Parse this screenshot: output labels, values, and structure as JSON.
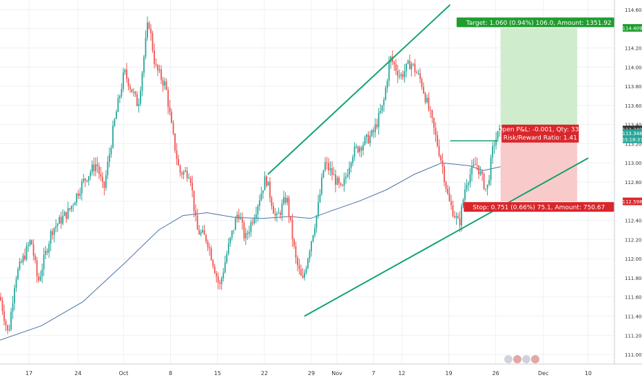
{
  "colors": {
    "up": "#26a69a",
    "down": "#ef5350",
    "trendline": "#0fa36b",
    "ma": "#4a6fa5",
    "target_zone": "#cfeccd",
    "stop_zone": "#f9caca",
    "target_label_bg": "#1f9e2e",
    "stop_label_bg": "#d9262b",
    "grid": "#eef0f3",
    "axis_text": "#333333"
  },
  "chart_data": {
    "type": "candlestick",
    "ylim": [
      110.9,
      114.7
    ],
    "y_ticks": [
      111.0,
      111.2,
      111.4,
      111.6,
      111.8,
      112.0,
      112.2,
      112.4,
      112.6,
      112.8,
      113.0,
      113.2,
      113.4,
      113.6,
      113.8,
      114.0,
      114.2,
      114.4,
      114.6
    ],
    "y_tick_labels": [
      "111.000",
      "111.200",
      "111.400",
      "111.600",
      "111.800",
      "112.000",
      "112.200",
      "112.400",
      "112.600",
      "112.800",
      "113.000",
      "113.200",
      "113.400",
      "113.600",
      "113.800",
      "114.000",
      "114.200",
      "114.400",
      "114.600"
    ],
    "x_range": [
      0,
      890
    ],
    "x_ticks": [
      {
        "label": "17",
        "t": 42
      },
      {
        "label": "24",
        "t": 113
      },
      {
        "label": "Oct",
        "t": 179
      },
      {
        "label": "8",
        "t": 247
      },
      {
        "label": "15",
        "t": 315
      },
      {
        "label": "22",
        "t": 383
      },
      {
        "label": "29",
        "t": 451
      },
      {
        "label": "Nov",
        "t": 488
      },
      {
        "label": "7",
        "t": 541
      },
      {
        "label": "12",
        "t": 582
      },
      {
        "label": "19",
        "t": 650
      },
      {
        "label": "26",
        "t": 718
      },
      {
        "label": "Dec",
        "t": 787
      },
      {
        "label": "10",
        "t": 852
      }
    ],
    "price_path": [
      [
        0,
        111.6
      ],
      [
        12,
        111.2
      ],
      [
        22,
        111.8
      ],
      [
        45,
        112.2
      ],
      [
        55,
        111.75
      ],
      [
        75,
        112.3
      ],
      [
        100,
        112.5
      ],
      [
        120,
        112.8
      ],
      [
        140,
        113.0
      ],
      [
        150,
        112.7
      ],
      [
        165,
        113.4
      ],
      [
        180,
        113.95
      ],
      [
        200,
        113.6
      ],
      [
        215,
        114.5
      ],
      [
        225,
        114.0
      ],
      [
        240,
        113.8
      ],
      [
        250,
        113.3
      ],
      [
        260,
        112.9
      ],
      [
        275,
        112.9
      ],
      [
        285,
        112.3
      ],
      [
        300,
        112.2
      ],
      [
        318,
        111.7
      ],
      [
        330,
        112.1
      ],
      [
        345,
        112.5
      ],
      [
        355,
        112.2
      ],
      [
        370,
        112.5
      ],
      [
        385,
        112.85
      ],
      [
        400,
        112.4
      ],
      [
        415,
        112.65
      ],
      [
        428,
        112.0
      ],
      [
        438,
        111.75
      ],
      [
        448,
        112.1
      ],
      [
        460,
        112.5
      ],
      [
        470,
        113.0
      ],
      [
        480,
        112.9
      ],
      [
        495,
        112.7
      ],
      [
        510,
        113.1
      ],
      [
        525,
        113.2
      ],
      [
        540,
        113.3
      ],
      [
        555,
        113.6
      ],
      [
        565,
        114.1
      ],
      [
        580,
        113.9
      ],
      [
        595,
        114.05
      ],
      [
        610,
        113.85
      ],
      [
        625,
        113.45
      ],
      [
        640,
        113.0
      ],
      [
        650,
        112.6
      ],
      [
        665,
        112.35
      ],
      [
        675,
        112.8
      ],
      [
        690,
        113.0
      ],
      [
        705,
        112.7
      ],
      [
        715,
        113.2
      ],
      [
        725,
        113.35
      ]
    ],
    "moving_average": [
      [
        0,
        111.15
      ],
      [
        60,
        111.3
      ],
      [
        120,
        111.55
      ],
      [
        180,
        111.95
      ],
      [
        230,
        112.3
      ],
      [
        265,
        112.45
      ],
      [
        300,
        112.48
      ],
      [
        340,
        112.43
      ],
      [
        380,
        112.42
      ],
      [
        420,
        112.44
      ],
      [
        450,
        112.42
      ],
      [
        480,
        112.5
      ],
      [
        520,
        112.6
      ],
      [
        560,
        112.72
      ],
      [
        600,
        112.88
      ],
      [
        640,
        113.0
      ],
      [
        680,
        112.97
      ],
      [
        700,
        112.92
      ],
      [
        725,
        112.96
      ]
    ],
    "channel_upper": [
      [
        388,
        112.88
      ],
      [
        652,
        114.65
      ]
    ],
    "channel_lower": [
      [
        441,
        111.4
      ],
      [
        852,
        113.05
      ]
    ],
    "resistance_line": [
      [
        652,
        113.23
      ],
      [
        722,
        113.23
      ]
    ],
    "position": {
      "entry": 113.349,
      "target": 114.409,
      "stop": 112.598,
      "t_start": 725,
      "t_end": 836
    },
    "price_axis_tags": [
      {
        "label": "114.409",
        "value": 114.409,
        "color": "#1f9e2e"
      },
      {
        "label": "113.349",
        "value": 113.349,
        "color": "#333333"
      },
      {
        "label": "113.348",
        "value": 113.312,
        "color": "#26a69a"
      },
      {
        "label": "03:18:37",
        "value": 113.245,
        "color": "#26a69a"
      },
      {
        "label": "112.598",
        "value": 112.598,
        "color": "#d9262b"
      }
    ],
    "labels": {
      "target": "Target: 1.060 (0.94%) 106.0, Amount: 1351.92",
      "open_pl": "Open P&L: -0.001, Qty: 332",
      "risk_reward": "Risk/Reward Ratio: 1.41",
      "stop": "Stop: 0.751 (0.66%) 75.1, Amount: 750.67"
    }
  }
}
